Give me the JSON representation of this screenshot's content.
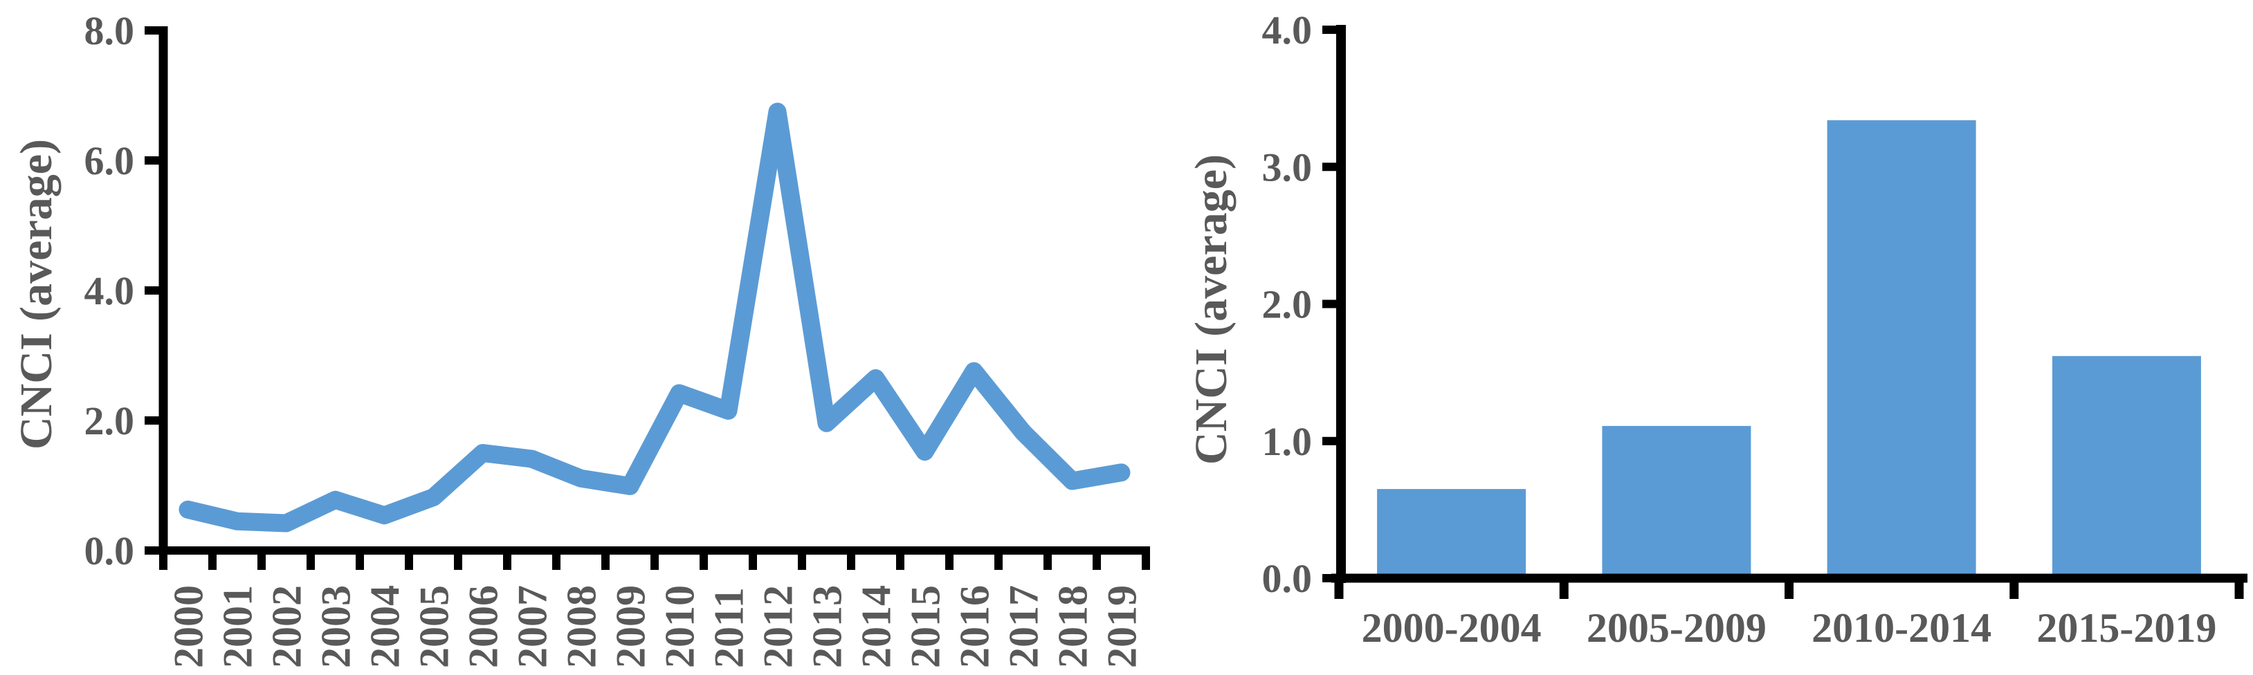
{
  "figure": {
    "background": "#ffffff",
    "axis_color": "#000000",
    "text_color": "#595959",
    "accent_color": "#5B9BD5"
  },
  "chart_data": [
    {
      "type": "line",
      "title": "",
      "xlabel": "",
      "ylabel": "CNCI (average)",
      "x": [
        "2000",
        "2001",
        "2002",
        "2003",
        "2004",
        "2005",
        "2006",
        "2007",
        "2008",
        "2009",
        "2010",
        "2011",
        "2012",
        "2013",
        "2014",
        "2015",
        "2016",
        "2017",
        "2018",
        "2019"
      ],
      "values": [
        0.63,
        0.45,
        0.42,
        0.78,
        0.54,
        0.82,
        1.5,
        1.41,
        1.11,
        0.99,
        2.42,
        2.15,
        6.75,
        1.96,
        2.65,
        1.52,
        2.76,
        1.82,
        1.07,
        1.2
      ],
      "ylim": [
        0,
        8
      ],
      "yticks": [
        0,
        2,
        4,
        6,
        8
      ],
      "ytick_labels": [
        "0.0",
        "2.0",
        "4.0",
        "6.0",
        "8.0"
      ],
      "line_color": "#5B9BD5",
      "grid": false,
      "legend": "none",
      "x_label_rotation": -90
    },
    {
      "type": "bar",
      "title": "",
      "xlabel": "",
      "ylabel": "CNCI (average)",
      "categories": [
        "2000-2004",
        "2005-2009",
        "2010-2014",
        "2015-2019"
      ],
      "values": [
        0.65,
        1.11,
        3.34,
        1.62
      ],
      "ylim": [
        0,
        4
      ],
      "yticks": [
        0,
        1,
        2,
        3,
        4
      ],
      "ytick_labels": [
        "0.0",
        "1.0",
        "2.0",
        "3.0",
        "4.0"
      ],
      "bar_color": "#5B9BD5",
      "grid": false,
      "legend": "none",
      "x_label_rotation": 0
    }
  ]
}
